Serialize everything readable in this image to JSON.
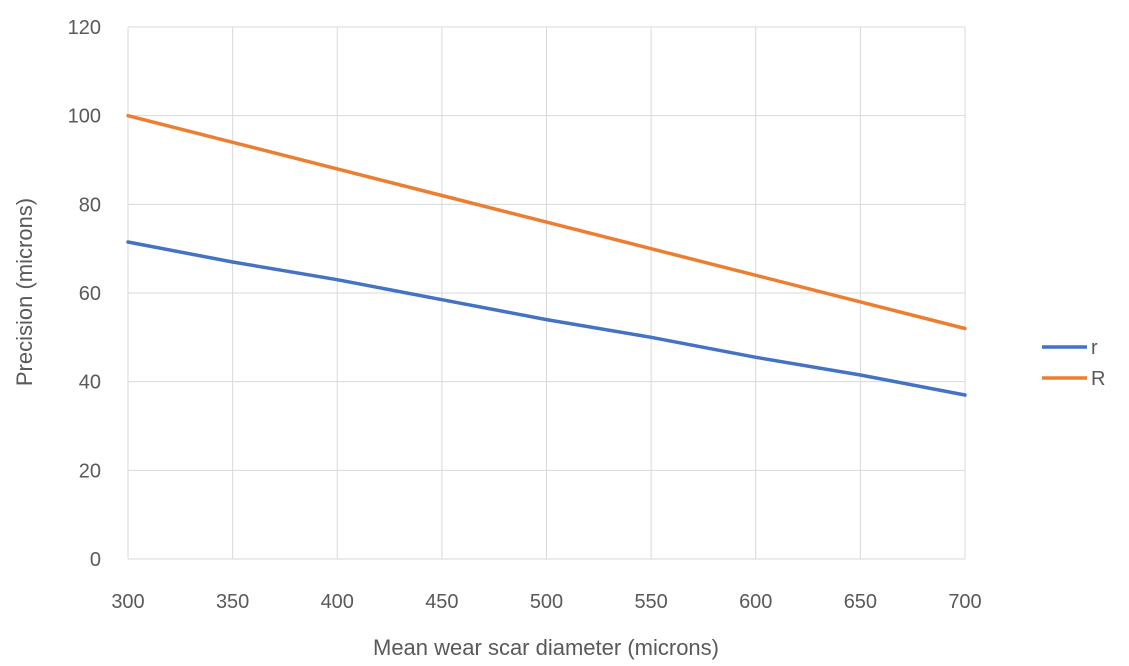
{
  "chart_data": {
    "type": "line",
    "title": "",
    "xlabel": "Mean wear scar diameter (microns)",
    "ylabel": "Precision (microns)",
    "xlim": [
      300,
      700
    ],
    "ylim": [
      0,
      120
    ],
    "x_ticks": [
      300,
      350,
      400,
      450,
      500,
      550,
      600,
      650,
      700
    ],
    "y_ticks": [
      0,
      20,
      40,
      60,
      80,
      100,
      120
    ],
    "grid": true,
    "legend_position": "right",
    "series": [
      {
        "name": "r",
        "color": "#4472c4",
        "x": [
          300,
          350,
          400,
          450,
          500,
          550,
          600,
          650,
          700
        ],
        "y": [
          71.5,
          67,
          63,
          58.5,
          54,
          50,
          45.5,
          41.5,
          37
        ]
      },
      {
        "name": "R",
        "color": "#ed7d31",
        "x": [
          300,
          350,
          400,
          450,
          500,
          550,
          600,
          650,
          700
        ],
        "y": [
          100,
          94,
          88,
          82,
          76,
          70,
          64,
          58,
          52
        ]
      }
    ]
  }
}
